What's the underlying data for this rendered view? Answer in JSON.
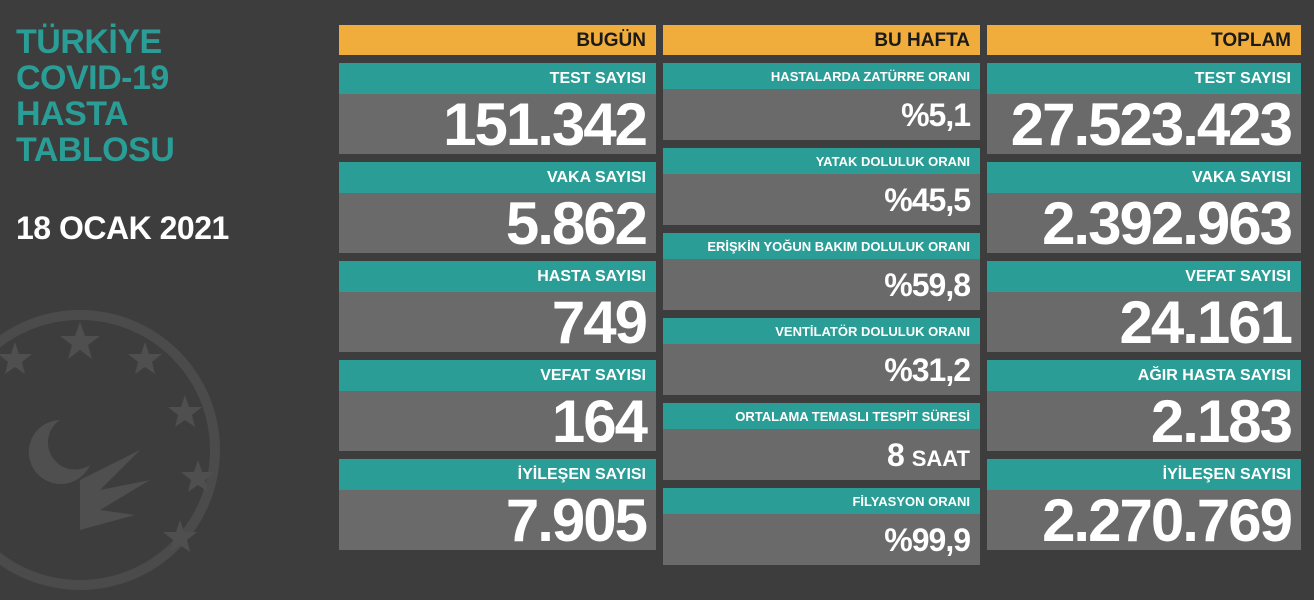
{
  "title_lines": [
    "TÜRKİYE",
    "COVID-19",
    "HASTA",
    "TABLOSU"
  ],
  "date": "18 OCAK 2021",
  "columns": {
    "today": {
      "header": "BUGÜN",
      "items": [
        {
          "label": "TEST SAYISI",
          "value": "151.342"
        },
        {
          "label": "VAKA SAYISI",
          "value": "5.862"
        },
        {
          "label": "HASTA SAYISI",
          "value": "749"
        },
        {
          "label": "VEFAT SAYISI",
          "value": "164"
        },
        {
          "label": "İYİLEŞEN SAYISI",
          "value": "7.905"
        }
      ]
    },
    "week": {
      "header": "BU HAFTA",
      "items": [
        {
          "label": "HASTALARDA ZATÜRRE ORANI",
          "value": "%5,1"
        },
        {
          "label": "YATAK DOLULUK ORANI",
          "value": "%45,5"
        },
        {
          "label": "ERİŞKİN YOĞUN BAKIM DOLULUK ORANI",
          "value": "%59,8"
        },
        {
          "label": "VENTİLATÖR DOLULUK ORANI",
          "value": "%31,2"
        },
        {
          "label": "ORTALAMA TEMASLI TESPİT SÜRESİ",
          "value": "8",
          "unit": "SAAT"
        },
        {
          "label": "FİLYASYON ORANI",
          "value": "%99,9"
        }
      ]
    },
    "total": {
      "header": "TOPLAM",
      "items": [
        {
          "label": "TEST SAYISI",
          "value": "27.523.423"
        },
        {
          "label": "VAKA SAYISI",
          "value": "2.392.963"
        },
        {
          "label": "VEFAT SAYISI",
          "value": "24.161"
        },
        {
          "label": "AĞIR HASTA SAYISI",
          "value": "2.183"
        },
        {
          "label": "İYİLEŞEN SAYISI",
          "value": "2.270.769"
        }
      ]
    }
  },
  "colors": {
    "background": "#3d3d3d",
    "teal": "#2a9e96",
    "orange": "#f0ad3c",
    "value_bg": "#6a6a6a"
  },
  "icons": [
    "ministry-emblem-icon"
  ]
}
